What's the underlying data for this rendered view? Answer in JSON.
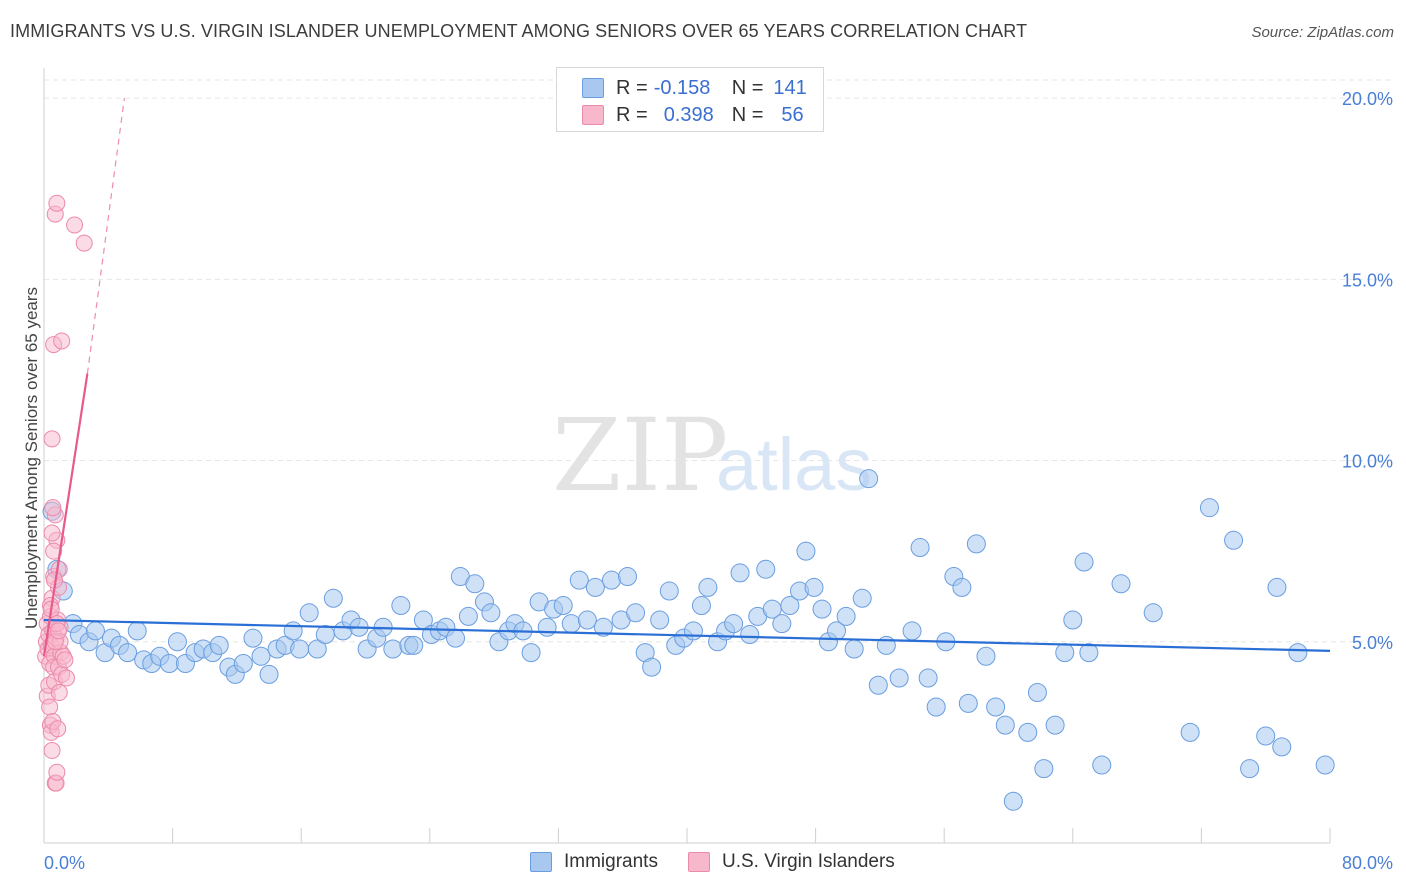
{
  "header": {
    "title": "IMMIGRANTS VS U.S. VIRGIN ISLANDER UNEMPLOYMENT AMONG SENIORS OVER 65 YEARS CORRELATION CHART",
    "source": "Source: ZipAtlas.com"
  },
  "watermark": {
    "zip": "ZIP",
    "atlas": "atlas"
  },
  "legend": {
    "rows": [
      {
        "r_label": "R =",
        "r_value": "-0.158",
        "n_label": "N =",
        "n_value": "141"
      },
      {
        "r_label": "R =",
        "r_value": "0.398",
        "n_label": "N =",
        "n_value": "56"
      }
    ]
  },
  "bottom_legend": {
    "immigrants": "Immigrants",
    "virgin_islanders": "U.S. Virgin Islanders"
  },
  "colors": {
    "immigrants_fill": "#a8c8f0",
    "immigrants_stroke": "#6a9ee0",
    "immigrants_line": "#2a6fd6",
    "vi_fill": "#f7b8cc",
    "vi_stroke": "#ec8aab",
    "vi_line": "#e85a8a",
    "tick_text": "#4a7fd6"
  },
  "chart_data": {
    "type": "scatter",
    "title": "IMMIGRANTS VS U.S. VIRGIN ISLANDER UNEMPLOYMENT AMONG SENIORS OVER 65 YEARS CORRELATION CHART",
    "xlabel": "",
    "ylabel": "Unemployment Among Seniors over 65 years",
    "xlim": [
      0,
      80
    ],
    "ylim": [
      0,
      20.5
    ],
    "x_tick_labels": [
      "0.0%",
      "80.0%"
    ],
    "y_ticks": [
      5,
      10,
      15,
      20
    ],
    "y_tick_labels": [
      "5.0%",
      "10.0%",
      "15.0%",
      "20.0%"
    ],
    "grid": true,
    "series": [
      {
        "name": "Immigrants",
        "r": -0.158,
        "n": 141,
        "trend": {
          "x0": 0,
          "y0": 5.6,
          "x1": 80,
          "y1": 4.75
        },
        "points": [
          [
            0.5,
            8.6
          ],
          [
            0.8,
            7.0
          ],
          [
            1.2,
            6.4
          ],
          [
            1.8,
            5.5
          ],
          [
            2.2,
            5.2
          ],
          [
            2.8,
            5.0
          ],
          [
            3.2,
            5.3
          ],
          [
            3.8,
            4.7
          ],
          [
            4.2,
            5.1
          ],
          [
            4.7,
            4.9
          ],
          [
            5.2,
            4.7
          ],
          [
            5.8,
            5.3
          ],
          [
            6.2,
            4.5
          ],
          [
            6.7,
            4.4
          ],
          [
            7.2,
            4.6
          ],
          [
            7.8,
            4.4
          ],
          [
            8.3,
            5.0
          ],
          [
            8.8,
            4.4
          ],
          [
            9.4,
            4.7
          ],
          [
            9.9,
            4.8
          ],
          [
            10.5,
            4.7
          ],
          [
            10.9,
            4.9
          ],
          [
            11.5,
            4.3
          ],
          [
            11.9,
            4.1
          ],
          [
            12.4,
            4.4
          ],
          [
            13.0,
            5.1
          ],
          [
            13.5,
            4.6
          ],
          [
            14.0,
            4.1
          ],
          [
            14.5,
            4.8
          ],
          [
            15.0,
            4.9
          ],
          [
            15.5,
            5.3
          ],
          [
            15.9,
            4.8
          ],
          [
            16.5,
            5.8
          ],
          [
            17.0,
            4.8
          ],
          [
            17.5,
            5.2
          ],
          [
            18.0,
            6.2
          ],
          [
            18.6,
            5.3
          ],
          [
            19.1,
            5.6
          ],
          [
            19.6,
            5.4
          ],
          [
            20.1,
            4.8
          ],
          [
            20.7,
            5.1
          ],
          [
            21.1,
            5.4
          ],
          [
            21.7,
            4.8
          ],
          [
            22.2,
            6.0
          ],
          [
            22.7,
            4.9
          ],
          [
            23.0,
            4.9
          ],
          [
            23.6,
            5.6
          ],
          [
            24.1,
            5.2
          ],
          [
            24.6,
            5.3
          ],
          [
            25.0,
            5.4
          ],
          [
            25.6,
            5.1
          ],
          [
            25.9,
            6.8
          ],
          [
            26.4,
            5.7
          ],
          [
            26.8,
            6.6
          ],
          [
            27.4,
            6.1
          ],
          [
            27.8,
            5.8
          ],
          [
            28.3,
            5.0
          ],
          [
            28.9,
            5.3
          ],
          [
            29.3,
            5.5
          ],
          [
            29.8,
            5.3
          ],
          [
            30.3,
            4.7
          ],
          [
            30.8,
            6.1
          ],
          [
            31.3,
            5.4
          ],
          [
            31.7,
            5.9
          ],
          [
            32.3,
            6.0
          ],
          [
            32.8,
            5.5
          ],
          [
            33.3,
            6.7
          ],
          [
            33.8,
            5.6
          ],
          [
            34.3,
            6.5
          ],
          [
            34.8,
            5.4
          ],
          [
            35.3,
            6.7
          ],
          [
            35.9,
            5.6
          ],
          [
            36.3,
            6.8
          ],
          [
            36.8,
            5.8
          ],
          [
            37.4,
            4.7
          ],
          [
            37.8,
            4.3
          ],
          [
            38.3,
            5.6
          ],
          [
            38.9,
            6.4
          ],
          [
            39.3,
            4.9
          ],
          [
            39.8,
            5.1
          ],
          [
            40.4,
            5.3
          ],
          [
            40.9,
            6.0
          ],
          [
            41.3,
            6.5
          ],
          [
            41.9,
            5.0
          ],
          [
            42.4,
            5.3
          ],
          [
            42.9,
            5.5
          ],
          [
            43.3,
            6.9
          ],
          [
            43.9,
            5.2
          ],
          [
            44.4,
            5.7
          ],
          [
            44.9,
            7.0
          ],
          [
            45.3,
            5.9
          ],
          [
            45.9,
            5.5
          ],
          [
            46.4,
            6.0
          ],
          [
            47.0,
            6.4
          ],
          [
            47.4,
            7.5
          ],
          [
            47.9,
            6.5
          ],
          [
            48.4,
            5.9
          ],
          [
            48.8,
            5.0
          ],
          [
            49.3,
            5.3
          ],
          [
            49.9,
            5.7
          ],
          [
            50.4,
            4.8
          ],
          [
            50.9,
            6.2
          ],
          [
            51.3,
            9.5
          ],
          [
            51.9,
            3.8
          ],
          [
            52.4,
            4.9
          ],
          [
            53.2,
            4.0
          ],
          [
            54.0,
            5.3
          ],
          [
            54.5,
            7.6
          ],
          [
            55.0,
            4.0
          ],
          [
            55.5,
            3.2
          ],
          [
            56.1,
            5.0
          ],
          [
            56.6,
            6.8
          ],
          [
            57.1,
            6.5
          ],
          [
            57.5,
            3.3
          ],
          [
            58.0,
            7.7
          ],
          [
            58.6,
            4.6
          ],
          [
            59.2,
            3.2
          ],
          [
            59.8,
            2.7
          ],
          [
            60.3,
            0.6
          ],
          [
            61.2,
            2.5
          ],
          [
            61.8,
            3.6
          ],
          [
            62.2,
            1.5
          ],
          [
            62.9,
            2.7
          ],
          [
            63.5,
            4.7
          ],
          [
            64.0,
            5.6
          ],
          [
            64.7,
            7.2
          ],
          [
            65.0,
            4.7
          ],
          [
            65.8,
            1.6
          ],
          [
            67.0,
            6.6
          ],
          [
            69.0,
            5.8
          ],
          [
            71.3,
            2.5
          ],
          [
            72.5,
            8.7
          ],
          [
            74.0,
            7.8
          ],
          [
            75.0,
            1.5
          ],
          [
            76.0,
            2.4
          ],
          [
            76.7,
            6.5
          ],
          [
            77.0,
            2.1
          ],
          [
            78.0,
            4.7
          ],
          [
            79.7,
            1.6
          ]
        ]
      },
      {
        "name": "U.S. Virgin Islanders",
        "r": 0.398,
        "n": 56,
        "trend": {
          "x0": 0,
          "y0": 4.6,
          "x1": 2.7,
          "y1": 12.4,
          "extended_x1": 5.0,
          "extended_y1": 20.0
        },
        "points": [
          [
            0.1,
            4.6
          ],
          [
            0.15,
            5.0
          ],
          [
            0.2,
            5.5
          ],
          [
            0.25,
            4.8
          ],
          [
            0.3,
            5.2
          ],
          [
            0.35,
            4.4
          ],
          [
            0.4,
            5.7
          ],
          [
            0.45,
            4.9
          ],
          [
            0.5,
            6.2
          ],
          [
            0.55,
            5.3
          ],
          [
            0.6,
            6.8
          ],
          [
            0.65,
            4.6
          ],
          [
            0.7,
            8.5
          ],
          [
            0.75,
            5.1
          ],
          [
            0.8,
            7.8
          ],
          [
            0.85,
            5.6
          ],
          [
            0.9,
            6.5
          ],
          [
            0.95,
            7.0
          ],
          [
            1.0,
            5.4
          ],
          [
            1.05,
            4.7
          ],
          [
            0.2,
            3.5
          ],
          [
            0.3,
            3.8
          ],
          [
            0.35,
            3.2
          ],
          [
            0.4,
            2.7
          ],
          [
            0.45,
            2.5
          ],
          [
            0.5,
            2.0
          ],
          [
            0.55,
            2.8
          ],
          [
            0.6,
            4.3
          ],
          [
            0.65,
            3.9
          ],
          [
            0.7,
            1.1
          ],
          [
            0.75,
            1.1
          ],
          [
            0.8,
            1.4
          ],
          [
            0.85,
            2.6
          ],
          [
            0.9,
            4.3
          ],
          [
            0.95,
            3.6
          ],
          [
            1.0,
            5.0
          ],
          [
            1.1,
            4.1
          ],
          [
            1.2,
            4.6
          ],
          [
            1.3,
            4.5
          ],
          [
            1.4,
            4.0
          ],
          [
            0.5,
            10.6
          ],
          [
            0.6,
            13.2
          ],
          [
            0.7,
            16.8
          ],
          [
            0.8,
            17.1
          ],
          [
            1.1,
            13.3
          ],
          [
            1.9,
            16.5
          ],
          [
            2.5,
            16.0
          ],
          [
            0.4,
            6.0
          ],
          [
            0.45,
            5.9
          ],
          [
            0.5,
            8.0
          ],
          [
            0.55,
            8.7
          ],
          [
            0.6,
            7.5
          ],
          [
            0.65,
            6.7
          ],
          [
            0.7,
            5.0
          ],
          [
            0.8,
            5.5
          ],
          [
            0.9,
            5.3
          ]
        ]
      }
    ]
  }
}
